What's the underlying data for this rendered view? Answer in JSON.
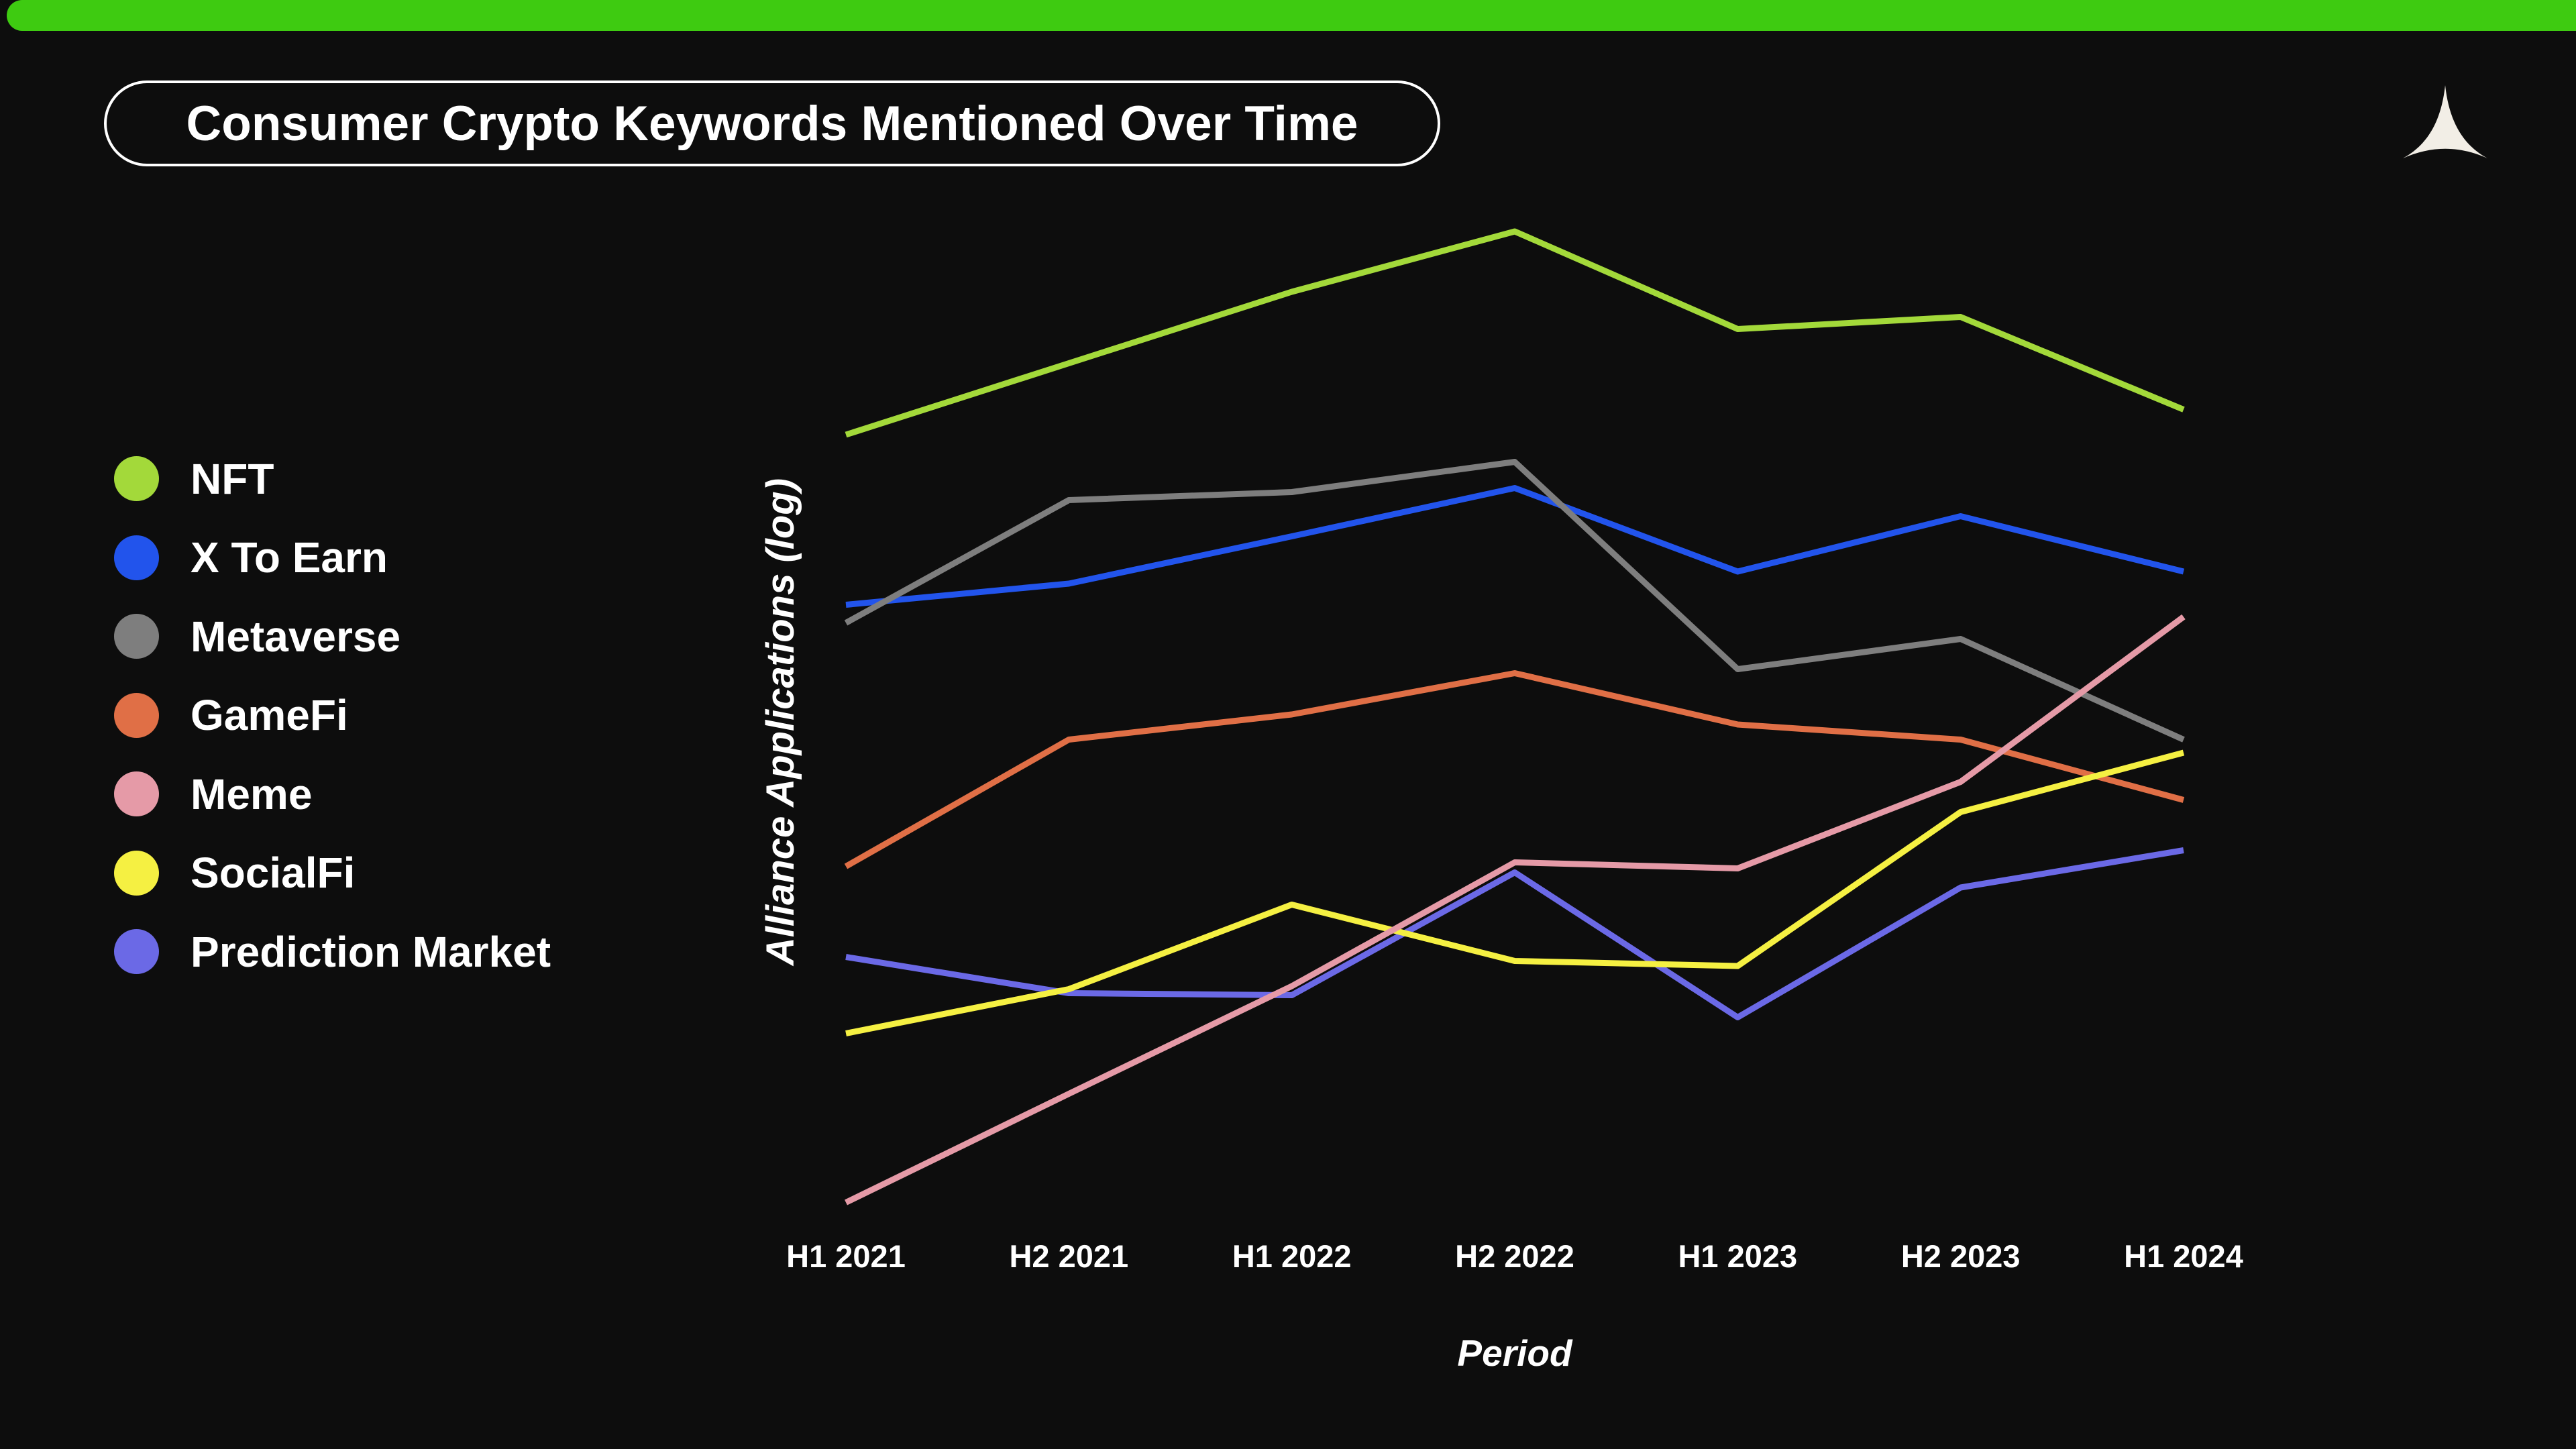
{
  "page": {
    "background_color": "#0d0d0d",
    "accent_bar_color": "#3ecb11"
  },
  "header": {
    "title": "Consumer Crypto Keywords Mentioned Over Time",
    "logo_color": "#f2eee6"
  },
  "chart_data": {
    "type": "line",
    "title": "Consumer Crypto Keywords Mentioned Over Time",
    "xlabel": "Period",
    "ylabel": "Alliance Applications (log)",
    "categories": [
      "H1 2021",
      "H2 2021",
      "H1 2022",
      "H2 2022",
      "H1 2023",
      "H2 2023",
      "H1 2024"
    ],
    "y_axis_note": "Log-scaled axis with no numeric tick labels; series values are estimated relative heights (0 = plot bottom, 100 = plot top).",
    "ylim": [
      0,
      100
    ],
    "grid": false,
    "legend_position": "left",
    "series": [
      {
        "id": "nft",
        "name": "NFT",
        "color": "#a3d93a",
        "values": [
          78.8,
          85.9,
          93.0,
          99.0,
          89.3,
          90.5,
          81.3
        ]
      },
      {
        "id": "x-to-earn",
        "name": "X To Earn",
        "color": "#2254ec",
        "values": [
          61.9,
          64.0,
          68.7,
          73.5,
          65.2,
          70.7,
          65.2
        ]
      },
      {
        "id": "metaverse",
        "name": "Metaverse",
        "color": "#7e7e7e",
        "values": [
          60.1,
          72.3,
          73.1,
          76.1,
          55.5,
          58.5,
          48.5
        ]
      },
      {
        "id": "gamefi",
        "name": "GameFi",
        "color": "#e06f46",
        "values": [
          35.9,
          48.5,
          51.0,
          55.1,
          50.0,
          48.5,
          42.5
        ]
      },
      {
        "id": "meme",
        "name": "Meme",
        "color": "#e59aa7",
        "values": [
          2.5,
          13.3,
          24.0,
          36.3,
          35.7,
          44.3,
          60.7
        ]
      },
      {
        "id": "socialfi",
        "name": "SocialFi",
        "color": "#f5f042",
        "values": [
          19.3,
          23.7,
          32.1,
          26.5,
          26.0,
          41.3,
          47.2
        ]
      },
      {
        "id": "prediction-market",
        "name": "Prediction Market",
        "color": "#6b69e6",
        "values": [
          26.9,
          23.3,
          23.1,
          35.3,
          20.9,
          33.8,
          37.5
        ]
      }
    ],
    "draw_order": [
      "nft",
      "x-to-earn",
      "metaverse",
      "gamefi",
      "prediction-market",
      "socialfi",
      "meme"
    ]
  }
}
